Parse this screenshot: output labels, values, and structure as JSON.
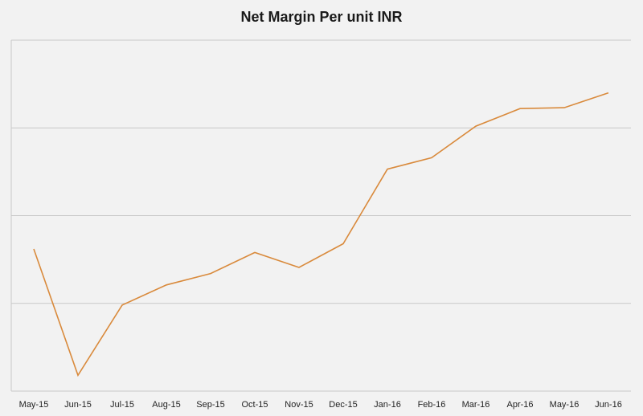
{
  "chart_data": {
    "type": "line",
    "title": "Net Margin Per unit INR",
    "xlabel": "",
    "ylabel": "",
    "categories": [
      "May-15",
      "Jun-15",
      "Jul-15",
      "Aug-15",
      "Sep-15",
      "Oct-15",
      "Nov-15",
      "Dec-15",
      "Jan-16",
      "Feb-16",
      "Mar-16",
      "Apr-16",
      "May-16",
      "Jun-16"
    ],
    "series": [
      {
        "color": "#d98a3c",
        "values": [
          1.62,
          0.18,
          0.98,
          1.21,
          1.34,
          1.58,
          1.41,
          1.68,
          2.53,
          2.66,
          3.02,
          3.22,
          3.23,
          3.4
        ]
      }
    ],
    "ylim": [
      0,
      4
    ],
    "gridlines": [
      1,
      2,
      3,
      4
    ],
    "show_y_tick_labels": false,
    "grid": true,
    "legend": "none"
  }
}
